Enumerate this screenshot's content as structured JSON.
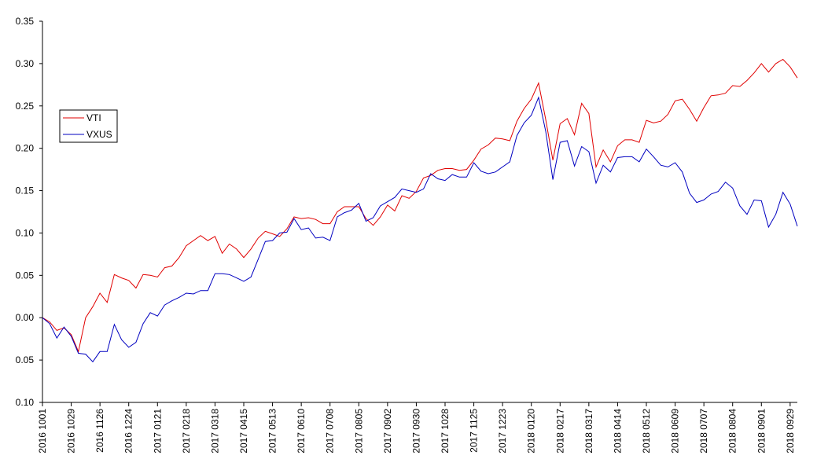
{
  "chart_data": {
    "type": "line",
    "title": "",
    "xlabel": "",
    "ylabel": "",
    "ylim": [
      -0.1,
      0.35
    ],
    "y_ticks": [
      0.35,
      0.3,
      0.25,
      0.2,
      0.15,
      0.1,
      0.05,
      0.0,
      -0.05,
      -0.1
    ],
    "y_tick_labels": [
      "0.35",
      "0.30",
      "0.25",
      "0.20",
      "0.15",
      "0.10",
      "0.05",
      "0.00",
      "0.05",
      "0.10"
    ],
    "x_tick_labels": [
      "2016 1001",
      "2016 1029",
      "2016 1126",
      "2016 1224",
      "2017 0121",
      "2017 0218",
      "2017 0318",
      "2017 0415",
      "2017 0513",
      "2017 0610",
      "2017 0708",
      "2017 0805",
      "2017 0902",
      "2017 0930",
      "2017 1028",
      "2017 1125",
      "2017 1223",
      "2018 0120",
      "2018 0217",
      "2018 0317",
      "2018 0414",
      "2018 0512",
      "2018 0609",
      "2018 0707",
      "2018 0804",
      "2018 0901",
      "2018 0929"
    ],
    "grid": false,
    "legend_position": "left-center",
    "series": [
      {
        "name": "VTI",
        "color": "#e00000",
        "values": [
          0.0,
          -0.005,
          -0.015,
          -0.012,
          -0.02,
          -0.04,
          0.0,
          0.013,
          0.029,
          0.018,
          0.051,
          0.047,
          0.044,
          0.035,
          0.051,
          0.05,
          0.048,
          0.059,
          0.061,
          0.071,
          0.085,
          0.091,
          0.097,
          0.091,
          0.096,
          0.076,
          0.087,
          0.081,
          0.071,
          0.081,
          0.094,
          0.102,
          0.099,
          0.096,
          0.105,
          0.119,
          0.117,
          0.118,
          0.116,
          0.111,
          0.111,
          0.125,
          0.131,
          0.131,
          0.131,
          0.117,
          0.109,
          0.119,
          0.133,
          0.126,
          0.144,
          0.141,
          0.149,
          0.165,
          0.168,
          0.174,
          0.176,
          0.176,
          0.174,
          0.175,
          0.186,
          0.199,
          0.204,
          0.212,
          0.211,
          0.209,
          0.232,
          0.247,
          0.258,
          0.277,
          0.234,
          0.186,
          0.229,
          0.235,
          0.216,
          0.253,
          0.241,
          0.178,
          0.198,
          0.184,
          0.203,
          0.21,
          0.21,
          0.207,
          0.233,
          0.23,
          0.232,
          0.24,
          0.256,
          0.258,
          0.246,
          0.232,
          0.248,
          0.262,
          0.263,
          0.265,
          0.274,
          0.273,
          0.28,
          0.289,
          0.3,
          0.29,
          0.3,
          0.305,
          0.296,
          0.283
        ]
      },
      {
        "name": "VXUS",
        "color": "#0000c0",
        "values": [
          0.0,
          -0.007,
          -0.024,
          -0.011,
          -0.022,
          -0.042,
          -0.043,
          -0.052,
          -0.04,
          -0.04,
          -0.008,
          -0.026,
          -0.035,
          -0.029,
          -0.007,
          0.006,
          0.002,
          0.015,
          0.02,
          0.024,
          0.029,
          0.028,
          0.032,
          0.032,
          0.052,
          0.052,
          0.051,
          0.047,
          0.043,
          0.048,
          0.069,
          0.09,
          0.091,
          0.1,
          0.101,
          0.117,
          0.104,
          0.106,
          0.094,
          0.095,
          0.091,
          0.119,
          0.124,
          0.127,
          0.135,
          0.114,
          0.118,
          0.132,
          0.137,
          0.142,
          0.152,
          0.15,
          0.148,
          0.152,
          0.17,
          0.164,
          0.162,
          0.169,
          0.166,
          0.166,
          0.183,
          0.173,
          0.17,
          0.172,
          0.178,
          0.184,
          0.215,
          0.23,
          0.239,
          0.26,
          0.22,
          0.163,
          0.207,
          0.209,
          0.179,
          0.202,
          0.196,
          0.159,
          0.18,
          0.172,
          0.189,
          0.19,
          0.19,
          0.184,
          0.199,
          0.19,
          0.18,
          0.178,
          0.183,
          0.172,
          0.147,
          0.136,
          0.139,
          0.146,
          0.149,
          0.16,
          0.153,
          0.132,
          0.122,
          0.139,
          0.138,
          0.107,
          0.122,
          0.148,
          0.134,
          0.108
        ]
      }
    ]
  }
}
